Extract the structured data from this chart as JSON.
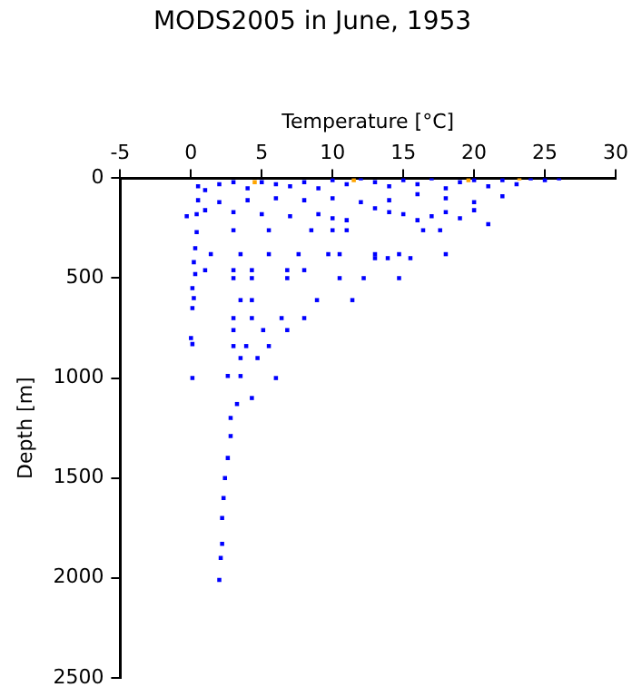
{
  "chart_data": {
    "type": "scatter",
    "title": "MODS2005 in June, 1953",
    "xlabel": "Temperature [°C]",
    "ylabel": "Depth [m]",
    "xlim": [
      -5,
      30
    ],
    "xticks": [
      -5,
      0,
      5,
      10,
      15,
      20,
      25,
      30
    ],
    "ylim": [
      2500,
      0
    ],
    "yticks": [
      0,
      500,
      1000,
      1500,
      2000,
      2500
    ],
    "grid": false,
    "legend": false,
    "marker": "square",
    "series": [
      {
        "color": "#0000ff",
        "x": [
          0.5,
          1,
          2,
          3,
          4,
          5,
          6,
          7,
          8,
          9,
          10,
          11,
          12,
          13,
          14,
          15,
          16,
          17,
          18,
          19,
          20,
          21,
          22,
          23,
          24,
          25,
          26,
          16,
          18,
          20,
          22,
          14,
          12,
          10,
          8,
          6,
          4,
          2,
          0.5,
          0.4,
          1,
          3,
          5,
          7,
          9,
          10,
          11,
          13,
          15,
          17,
          19,
          20,
          18,
          16,
          21,
          14,
          -0.3,
          0.4,
          0.3,
          0.2,
          0.3,
          0.1,
          0.2,
          0.1,
          0,
          0.1,
          0.1,
          3,
          5.5,
          8.5,
          10,
          11,
          16.4,
          17.6,
          1.4,
          3.5,
          5.5,
          7.6,
          9.7,
          10.5,
          13,
          14.7,
          18,
          13,
          13.9,
          15.5,
          1,
          3,
          4.3,
          6.8,
          8,
          3,
          4.3,
          6.8,
          10.5,
          12.2,
          14.7,
          3.5,
          4.3,
          8.9,
          11.4,
          3,
          4.3,
          6.4,
          8,
          3,
          5.1,
          6.8,
          3,
          3.9,
          5.5,
          3.5,
          4.7,
          2.6,
          3.5,
          6,
          4.3,
          3.25,
          2.8,
          2.8,
          2.6,
          2.4,
          2.3,
          2.2,
          2.2,
          2.1,
          2.0
        ],
        "values": [
          40,
          60,
          30,
          20,
          50,
          20,
          30,
          40,
          20,
          50,
          10,
          30,
          0,
          20,
          40,
          10,
          30,
          0,
          50,
          20,
          10,
          40,
          10,
          30,
          0,
          10,
          0,
          80,
          100,
          120,
          90,
          110,
          120,
          100,
          110,
          100,
          110,
          120,
          110,
          180,
          160,
          170,
          180,
          190,
          180,
          200,
          210,
          150,
          180,
          190,
          200,
          160,
          170,
          210,
          230,
          170,
          190,
          270,
          350,
          420,
          480,
          550,
          600,
          650,
          800,
          830,
          1000,
          260,
          260,
          260,
          260,
          260,
          260,
          260,
          380,
          380,
          380,
          380,
          380,
          380,
          380,
          380,
          380,
          400,
          400,
          400,
          460,
          460,
          460,
          460,
          460,
          500,
          500,
          500,
          500,
          500,
          500,
          610,
          610,
          610,
          610,
          700,
          700,
          700,
          700,
          760,
          760,
          760,
          840,
          840,
          840,
          900,
          900,
          990,
          990,
          1000,
          1100,
          1130,
          1200,
          1290,
          1400,
          1500,
          1600,
          1700,
          1830,
          1900,
          2010
        ]
      },
      {
        "color": "#ffa500",
        "x": [
          4.5,
          11.5,
          19.6,
          23.2
        ],
        "values": [
          20,
          10,
          10,
          0
        ]
      }
    ]
  }
}
